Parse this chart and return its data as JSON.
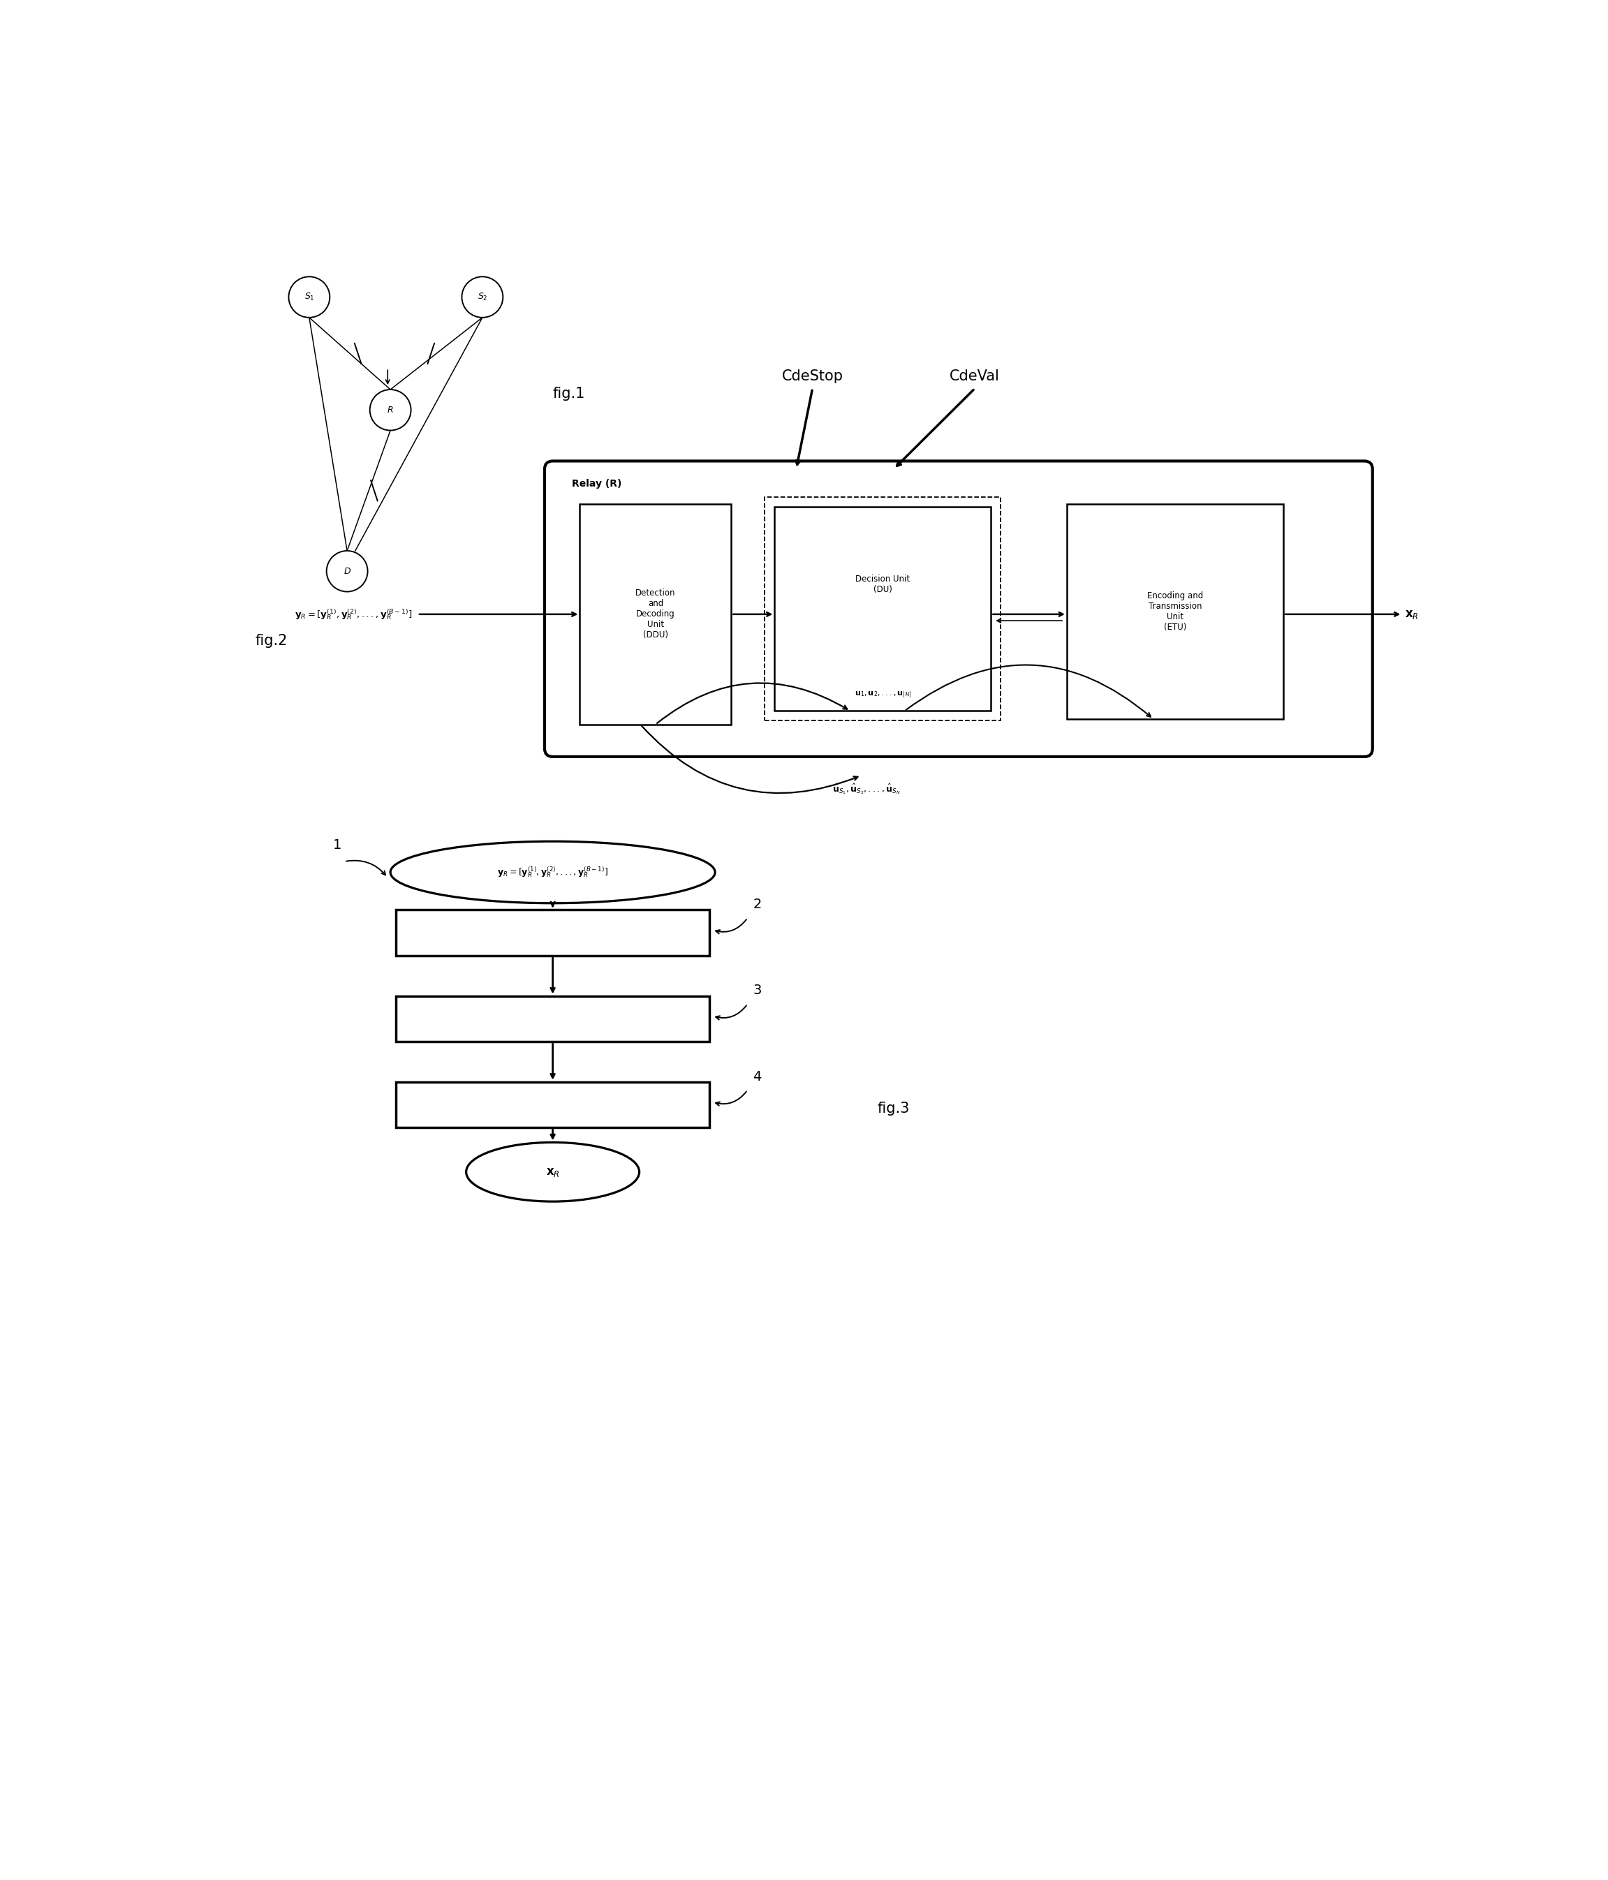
{
  "fig_width": 23.03,
  "fig_height": 26.93,
  "bg_color": "#ffffff",
  "fig1_label": "fig.1",
  "fig2_label": "fig.2",
  "fig3_label": "fig.3",
  "relay_box_label": "Relay (R)",
  "ddu_label": "Detection\nand\nDecoding\nUnit\n(DDU)",
  "du_label": "Decision Unit\n(DU)",
  "etu_label": "Encoding and\nTransmission\nUnit\n(ETU)",
  "cdestop_label": "CdeStop",
  "cdeval_label": "CdeVal"
}
